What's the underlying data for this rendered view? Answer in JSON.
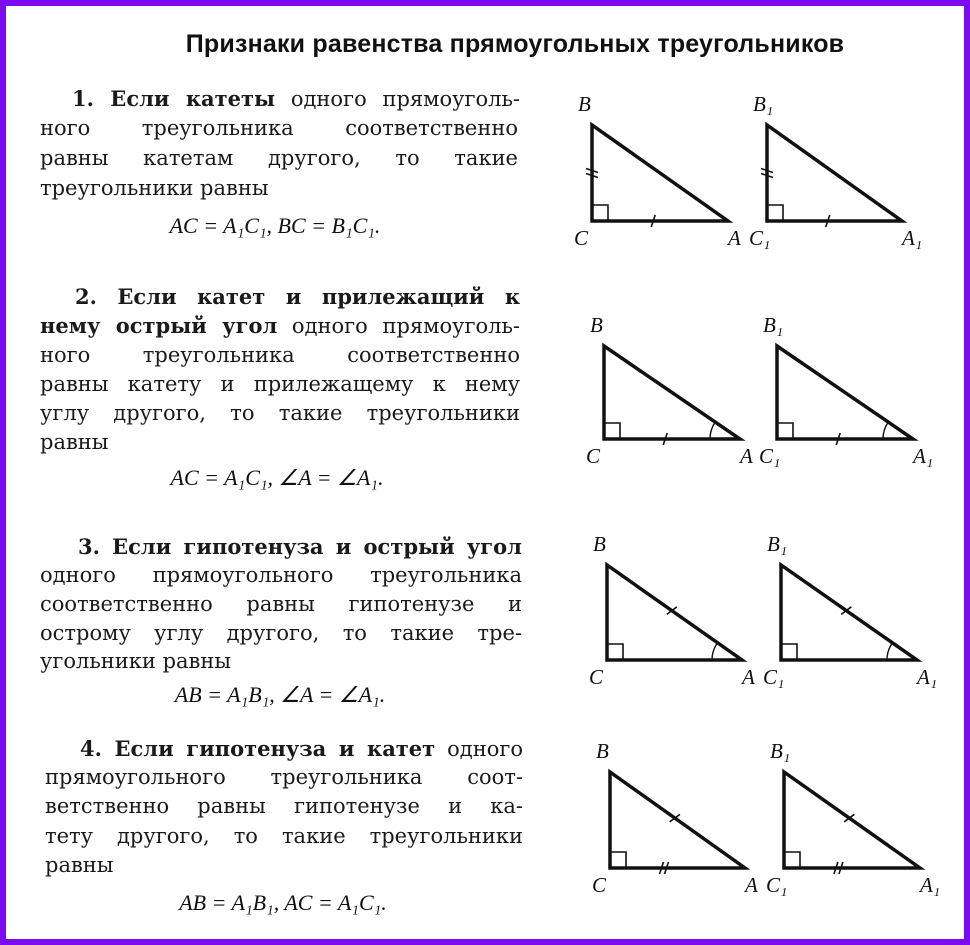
{
  "title": "Признаки равенства прямоугольных треугольников",
  "border_color": "#7b0cf2",
  "sections": [
    {
      "lines": [
        {
          "b": "1. Если катеты",
          "n": " одного прямоуголь-"
        },
        {
          "b": "",
          "n": "ного треугольника соответственно"
        },
        {
          "b": "",
          "n": "равны катетам другого, то такие"
        },
        {
          "b": "",
          "n": "треугольники равны"
        }
      ],
      "formula": "AC = A₁C₁, BC = B₁C₁.",
      "marks": "legs BC and AC marked equal",
      "labels": [
        "B",
        "C",
        "A",
        "B₁",
        "C₁",
        "A₁"
      ]
    },
    {
      "lines": [
        {
          "b": "2. Если катет и прилежащий к",
          "n": ""
        },
        {
          "b": "нему острый угол",
          "n": " одного прямоуголь-"
        },
        {
          "b": "",
          "n": "ного треугольника соответственно"
        },
        {
          "b": "",
          "n": "равны катету и прилежащему к нему"
        },
        {
          "b": "",
          "n": "углу другого, то такие треугольники"
        },
        {
          "b": "",
          "n": "равны"
        }
      ],
      "formula": "AC = A₁C₁, ∠A = ∠A₁.",
      "labels": [
        "B",
        "C",
        "A",
        "B₁",
        "C₁",
        "A₁"
      ]
    },
    {
      "lines": [
        {
          "b": "3. Если гипотенуза и острый угол",
          "n": ""
        },
        {
          "b": "",
          "n": "одного прямоугольного треугольника"
        },
        {
          "b": "",
          "n": "соответственно равны гипотенузе и"
        },
        {
          "b": "",
          "n": "острому углу другого, то такие тре-"
        },
        {
          "b": "",
          "n": "угольники равны"
        }
      ],
      "formula": "AB = A₁B₁, ∠A = ∠A₁.",
      "labels": [
        "B",
        "C",
        "A",
        "B₁",
        "C₁",
        "A₁"
      ]
    },
    {
      "lines": [
        {
          "b": "4. Если гипотенуза и катет",
          "n": " одного"
        },
        {
          "b": "",
          "n": "прямоугольного треугольника соот-"
        },
        {
          "b": "",
          "n": "ветственно равны гипотенузе и ка-"
        },
        {
          "b": "",
          "n": "тету другого, то такие треугольники"
        },
        {
          "b": "",
          "n": "равны"
        }
      ],
      "formula": "AB = A₁B₁, AC = A₁C₁.",
      "labels": [
        "B",
        "C",
        "A",
        "B₁",
        "C₁",
        "A₁"
      ]
    }
  ]
}
